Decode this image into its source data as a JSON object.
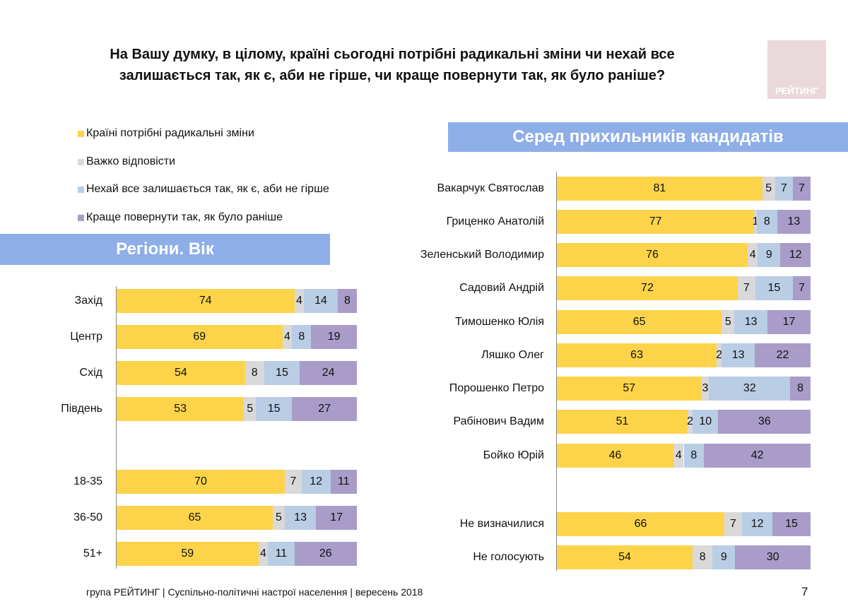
{
  "title_line1": "На Вашу думку, в цілому, країні сьогодні потрібні радикальні зміни чи нехай все",
  "title_line2": "залишається так, як є, аби не гірше, чи краще повернути так, як було раніше?",
  "logo_text": "РЕЙТИНГ",
  "footer": "група РЕЙТИНГ |  Суспільно-політичні настрої населення | вересень  2018",
  "page_number": "7",
  "legend": [
    {
      "label": "Країні потрібні радикальні зміни",
      "color": "#fdd34a"
    },
    {
      "label": "Важко відповісти",
      "color": "#d9d9d9"
    },
    {
      "label": "Нехай все залишається так, як є, аби не гірше",
      "color": "#b9cde5"
    },
    {
      "label": "Краще повернути так, як було раніше",
      "color": "#a99cc9"
    }
  ],
  "chart_data": [
    {
      "type": "bar",
      "stacked": true,
      "orientation": "horizontal",
      "title": "Регіони. Вік",
      "categories": [
        "Захід",
        "Центр",
        "Схід",
        "Південь",
        "18-35",
        "36-50",
        "51+"
      ],
      "series": [
        {
          "name": "Країні потрібні радикальні зміни",
          "values": [
            74,
            69,
            54,
            53,
            70,
            65,
            59
          ]
        },
        {
          "name": "Важко відповісти",
          "values": [
            4,
            4,
            8,
            5,
            7,
            5,
            4
          ]
        },
        {
          "name": "Нехай все залишається так, як є, аби не гірше",
          "values": [
            14,
            8,
            15,
            15,
            12,
            13,
            11
          ]
        },
        {
          "name": "Краще повернути так, як було раніше",
          "values": [
            8,
            19,
            24,
            27,
            11,
            17,
            26
          ]
        }
      ]
    },
    {
      "type": "bar",
      "stacked": true,
      "orientation": "horizontal",
      "title": "Серед прихильників кандидатів",
      "categories": [
        "Вакарчук Святослав",
        "Гриценко Анатолій",
        "Зеленський Володимир",
        "Садовий Андрій",
        "Тимошенко Юлія",
        "Ляшко Олег",
        "Порошенко Петро",
        "Рабінович Вадим",
        "Бойко Юрій",
        "Не визначилися",
        "Не голосують"
      ],
      "series": [
        {
          "name": "Країні потрібні радикальні зміни",
          "values": [
            81,
            77,
            76,
            72,
            65,
            63,
            57,
            51,
            46,
            66,
            54
          ]
        },
        {
          "name": "Важко відповісти",
          "values": [
            5,
            1,
            4,
            7,
            5,
            2,
            3,
            2,
            4,
            7,
            8
          ]
        },
        {
          "name": "Нехай все залишається так, як є, аби не гірше",
          "values": [
            7,
            8,
            9,
            15,
            13,
            13,
            32,
            10,
            8,
            12,
            9
          ]
        },
        {
          "name": "Краще повернути так, як було раніше",
          "values": [
            7,
            13,
            12,
            7,
            17,
            22,
            8,
            36,
            42,
            15,
            30
          ]
        }
      ]
    }
  ]
}
